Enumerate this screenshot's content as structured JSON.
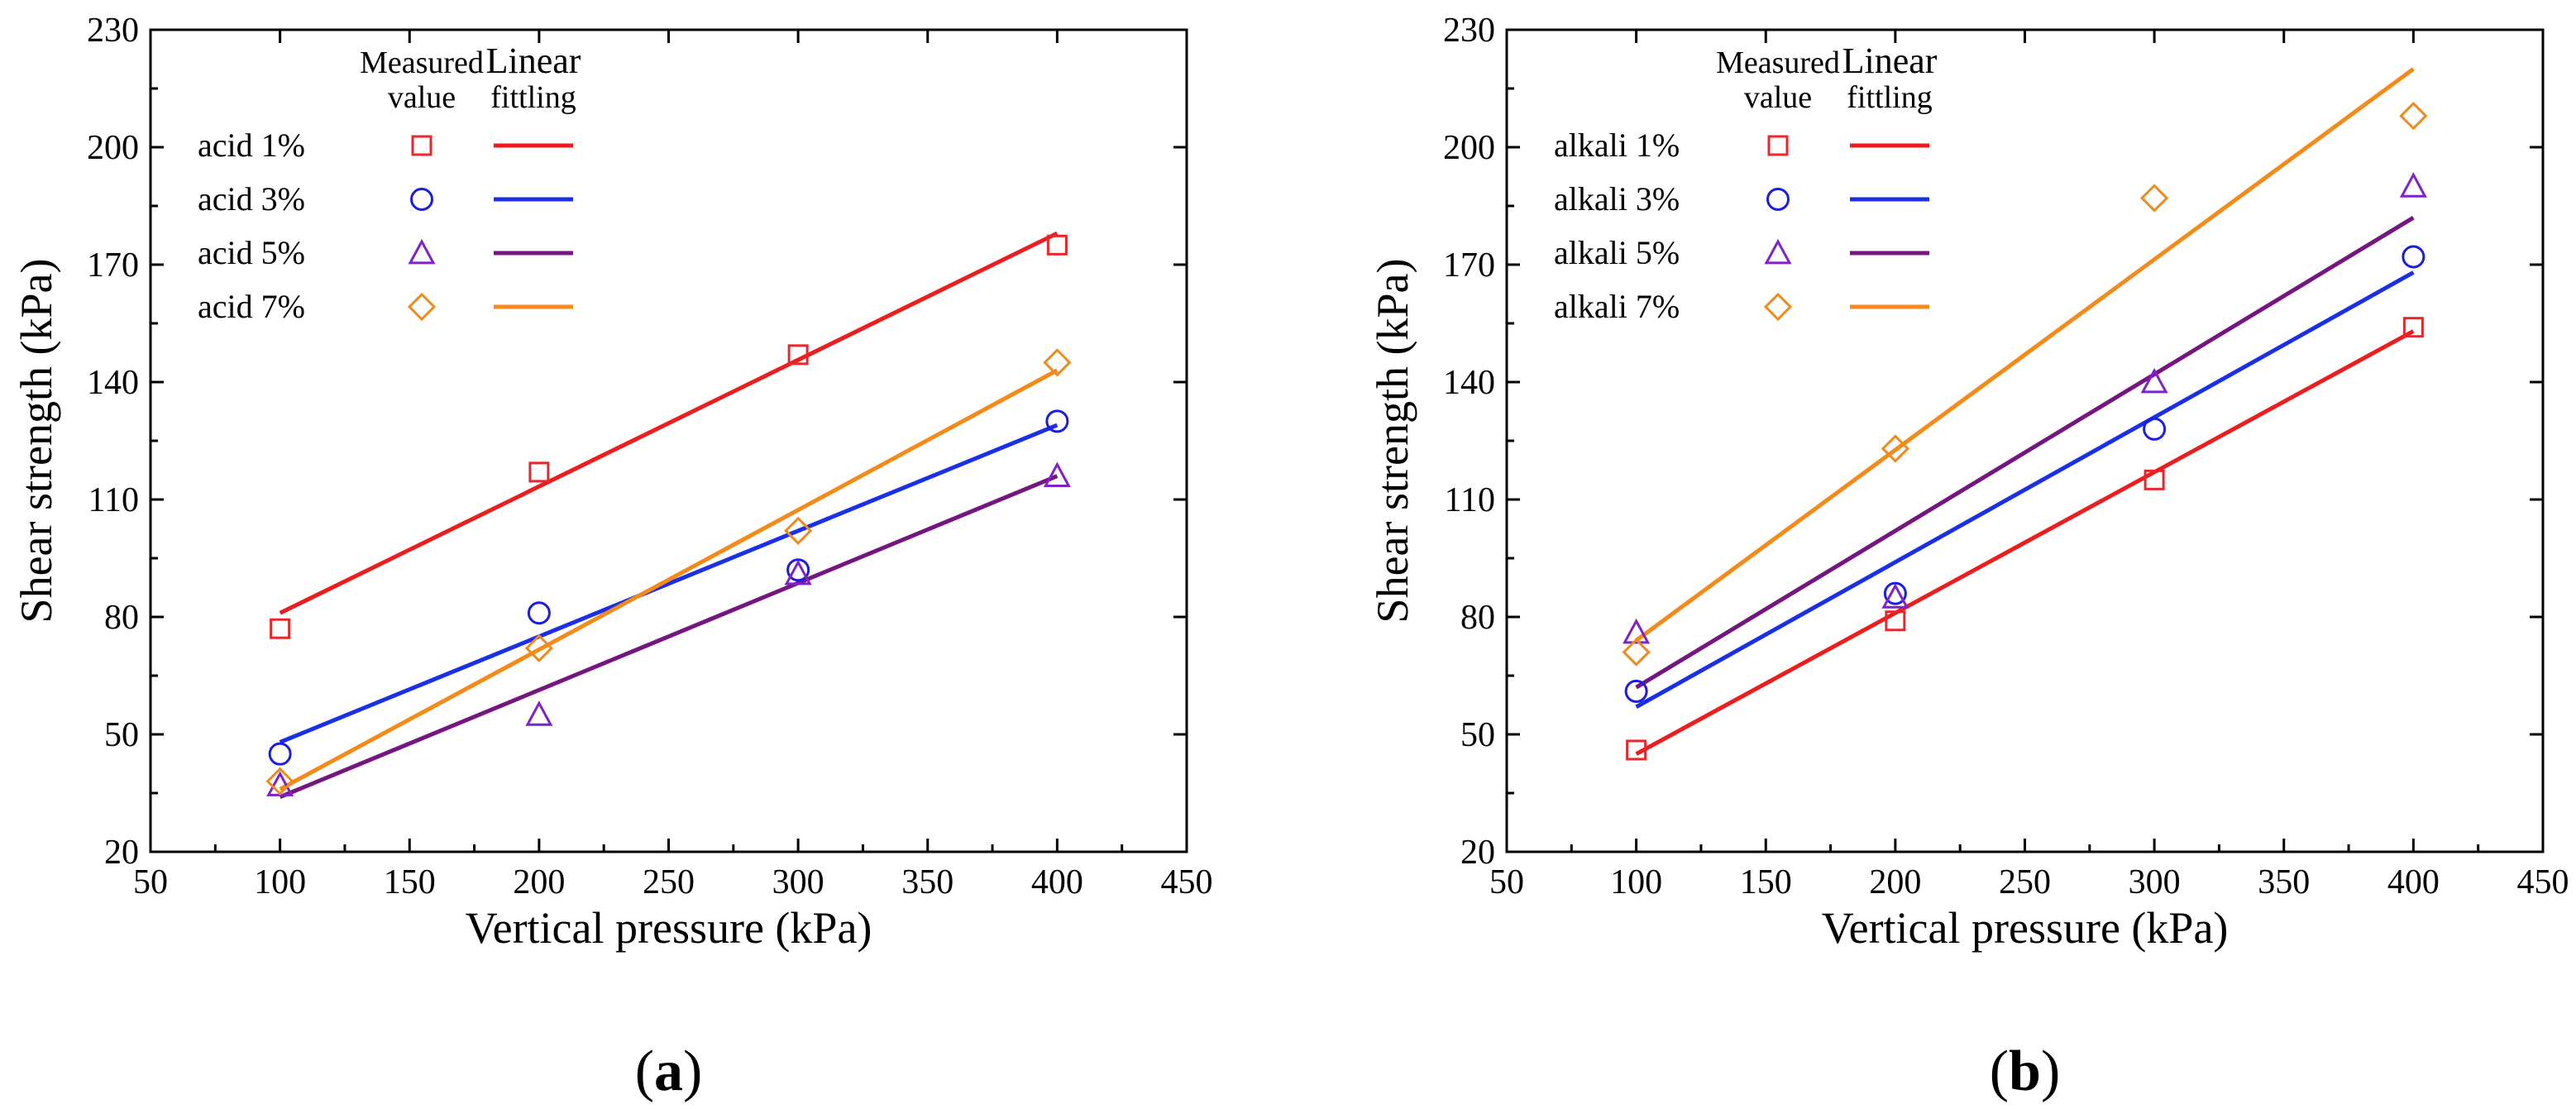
{
  "chart_data": [
    {
      "type": "scatter",
      "panel_label": "a",
      "xlabel": "Vertical pressure (kPa)",
      "ylabel": "Shear strength (kPa)",
      "xlim": [
        50,
        450
      ],
      "ylim": [
        20,
        230
      ],
      "xticks": [
        50,
        100,
        150,
        200,
        250,
        300,
        350,
        400,
        450
      ],
      "yticks": [
        20,
        50,
        80,
        110,
        140,
        170,
        200,
        230
      ],
      "legend": {
        "position": "top-left",
        "header_measured": [
          "Measured",
          "value"
        ],
        "header_fit": [
          "Linear",
          "fittling"
        ]
      },
      "series": [
        {
          "name": "acid 1%",
          "marker": "square",
          "color": "#e8262b",
          "x": [
            100,
            200,
            300,
            400
          ],
          "y": [
            77,
            117,
            147,
            175
          ],
          "fit": {
            "x": [
              100,
              400
            ],
            "y": [
              81,
              178
            ]
          }
        },
        {
          "name": "acid 3%",
          "marker": "circle",
          "color": "#1c1ce3",
          "x": [
            100,
            200,
            300,
            400
          ],
          "y": [
            45,
            81,
            92,
            130
          ],
          "fit": {
            "x": [
              100,
              400
            ],
            "y": [
              48,
              129
            ]
          }
        },
        {
          "name": "acid 5%",
          "marker": "triangle",
          "color": "#7d23c9",
          "x": [
            100,
            200,
            300,
            400
          ],
          "y": [
            37,
            55,
            91,
            116
          ],
          "fit": {
            "x": [
              100,
              400
            ],
            "y": [
              34,
              116
            ]
          }
        },
        {
          "name": "acid 7%",
          "marker": "diamond",
          "color": "#f08a1d",
          "x": [
            100,
            200,
            300,
            400
          ],
          "y": [
            38,
            72,
            102,
            145
          ],
          "fit": {
            "x": [
              100,
              400
            ],
            "y": [
              36,
              143
            ]
          }
        }
      ],
      "fit_colors": [
        "#ee1c1c",
        "#1a2fe8",
        "#741580",
        "#f58a18"
      ]
    },
    {
      "type": "scatter",
      "panel_label": "b",
      "xlabel": "Vertical pressure (kPa)",
      "ylabel": "Shear strength (kPa)",
      "xlim": [
        50,
        450
      ],
      "ylim": [
        20,
        230
      ],
      "xticks": [
        50,
        100,
        150,
        200,
        250,
        300,
        350,
        400,
        450
      ],
      "yticks": [
        20,
        50,
        80,
        110,
        140,
        170,
        200,
        230
      ],
      "legend": {
        "position": "top-left",
        "header_measured": [
          "Measured",
          "value"
        ],
        "header_fit": [
          "Linear",
          "fittling"
        ]
      },
      "series": [
        {
          "name": "alkali 1%",
          "marker": "square",
          "color": "#e8262b",
          "x": [
            100,
            200,
            300,
            400
          ],
          "y": [
            46,
            79,
            115,
            154
          ],
          "fit": {
            "x": [
              100,
              400
            ],
            "y": [
              45,
              153
            ]
          }
        },
        {
          "name": "alkali 3%",
          "marker": "circle",
          "color": "#1c1ce3",
          "x": [
            100,
            200,
            300,
            400
          ],
          "y": [
            61,
            86,
            128,
            172
          ],
          "fit": {
            "x": [
              100,
              400
            ],
            "y": [
              57,
              168
            ]
          }
        },
        {
          "name": "alkali 5%",
          "marker": "triangle",
          "color": "#7d23c9",
          "x": [
            100,
            200,
            300,
            400
          ],
          "y": [
            76,
            85,
            140,
            190
          ],
          "fit": {
            "x": [
              100,
              400
            ],
            "y": [
              62,
              182
            ]
          }
        },
        {
          "name": "alkali 7%",
          "marker": "diamond",
          "color": "#f08a1d",
          "x": [
            100,
            200,
            300,
            400
          ],
          "y": [
            71,
            123,
            187,
            208
          ],
          "fit": {
            "x": [
              100,
              400
            ],
            "y": [
              74,
              220
            ]
          }
        }
      ],
      "fit_colors": [
        "#ee1c1c",
        "#1a2fe8",
        "#741580",
        "#f58a18"
      ]
    }
  ]
}
